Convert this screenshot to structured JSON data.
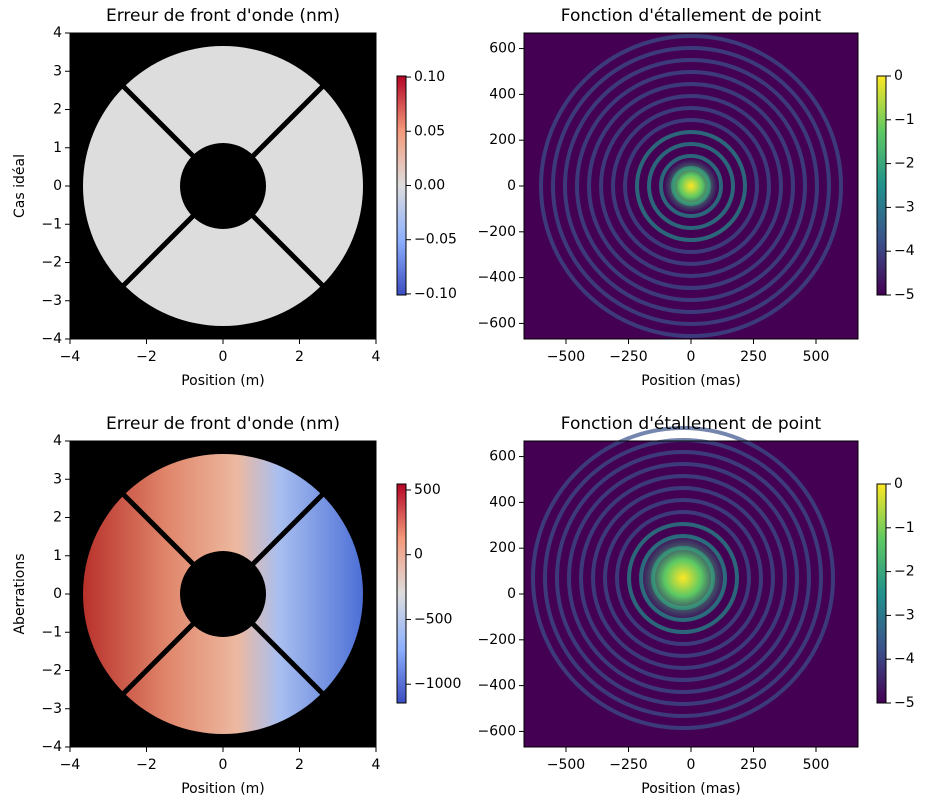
{
  "chart_data": [
    {
      "type": "image",
      "title": "Erreur de front d'onde (nm)",
      "xlabel": "Position (m)",
      "ylabel": "Cas idéal",
      "xlim": [
        -4,
        4
      ],
      "ylim": [
        -4,
        4
      ],
      "xticks": [
        {
          "value": -4,
          "label": "−4"
        },
        {
          "value": -2,
          "label": "−2"
        },
        0,
        2,
        4
      ],
      "yticks": [
        {
          "value": -4,
          "label": "−4"
        },
        {
          "value": -3,
          "label": "−3"
        },
        {
          "value": -2,
          "label": "−2"
        },
        {
          "value": -1,
          "label": "−1"
        },
        0,
        1,
        2,
        3,
        4
      ],
      "colormap": "coolwarm",
      "clim": [
        -0.101,
        0.101
      ],
      "cticks": [
        {
          "value": -0.1,
          "label": "−0.10"
        },
        {
          "value": -0.05,
          "label": "−0.05"
        },
        {
          "value": 0,
          "label": "0.00"
        },
        0.05,
        {
          "value": 0.1,
          "label": "0.10"
        }
      ]
    },
    {
      "type": "image",
      "title": "Fonction d'étallement de point",
      "xlabel": "Position (mas)",
      "xlim": [
        -668,
        668
      ],
      "ylim": [
        -668,
        668
      ],
      "xticks": [
        {
          "value": -500,
          "label": "−500"
        },
        {
          "value": -250,
          "label": "−250"
        },
        0,
        250,
        500
      ],
      "yticks": [
        {
          "value": -600,
          "label": "−600"
        },
        {
          "value": -400,
          "label": "−400"
        },
        {
          "value": -200,
          "label": "−200"
        },
        0,
        200,
        400,
        600
      ],
      "colormap": "viridis",
      "clim": [
        -5,
        0
      ],
      "cticks": [
        {
          "value": -5,
          "label": "−5"
        },
        {
          "value": -4,
          "label": "−4"
        },
        {
          "value": -3,
          "label": "−3"
        },
        {
          "value": -2,
          "label": "−2"
        },
        {
          "value": -1,
          "label": "−1"
        },
        0
      ]
    },
    {
      "type": "image",
      "title": "Erreur de front d'onde (nm)",
      "xlabel": "Position (m)",
      "ylabel": "Aberrations",
      "xlim": [
        -4,
        4
      ],
      "ylim": [
        -4,
        4
      ],
      "xticks": [
        {
          "value": -4,
          "label": "−4"
        },
        {
          "value": -2,
          "label": "−2"
        },
        0,
        2,
        4
      ],
      "yticks": [
        {
          "value": -4,
          "label": "−4"
        },
        {
          "value": -3,
          "label": "−3"
        },
        {
          "value": -2,
          "label": "−2"
        },
        {
          "value": -1,
          "label": "−1"
        },
        0,
        1,
        2,
        3,
        4
      ],
      "colormap": "coolwarm",
      "clim": [
        -1145,
        546
      ],
      "cticks": [
        {
          "value": -1000,
          "label": "−1000"
        },
        {
          "value": -500,
          "label": "−500"
        },
        0,
        500
      ]
    },
    {
      "type": "image",
      "title": "Fonction d'étallement de point",
      "xlabel": "Position (mas)",
      "xlim": [
        -668,
        668
      ],
      "ylim": [
        -668,
        668
      ],
      "xticks": [
        {
          "value": -500,
          "label": "−500"
        },
        {
          "value": -250,
          "label": "−250"
        },
        0,
        250,
        500
      ],
      "yticks": [
        {
          "value": -600,
          "label": "−600"
        },
        {
          "value": -400,
          "label": "−400"
        },
        {
          "value": -200,
          "label": "−200"
        },
        0,
        200,
        400,
        600
      ],
      "colormap": "viridis",
      "clim": [
        -5,
        0
      ],
      "cticks": [
        {
          "value": -5,
          "label": "−5"
        },
        {
          "value": -4,
          "label": "−4"
        },
        {
          "value": -3,
          "label": "−3"
        },
        {
          "value": -2,
          "label": "−2"
        },
        {
          "value": -1,
          "label": "−1"
        },
        0
      ]
    }
  ]
}
